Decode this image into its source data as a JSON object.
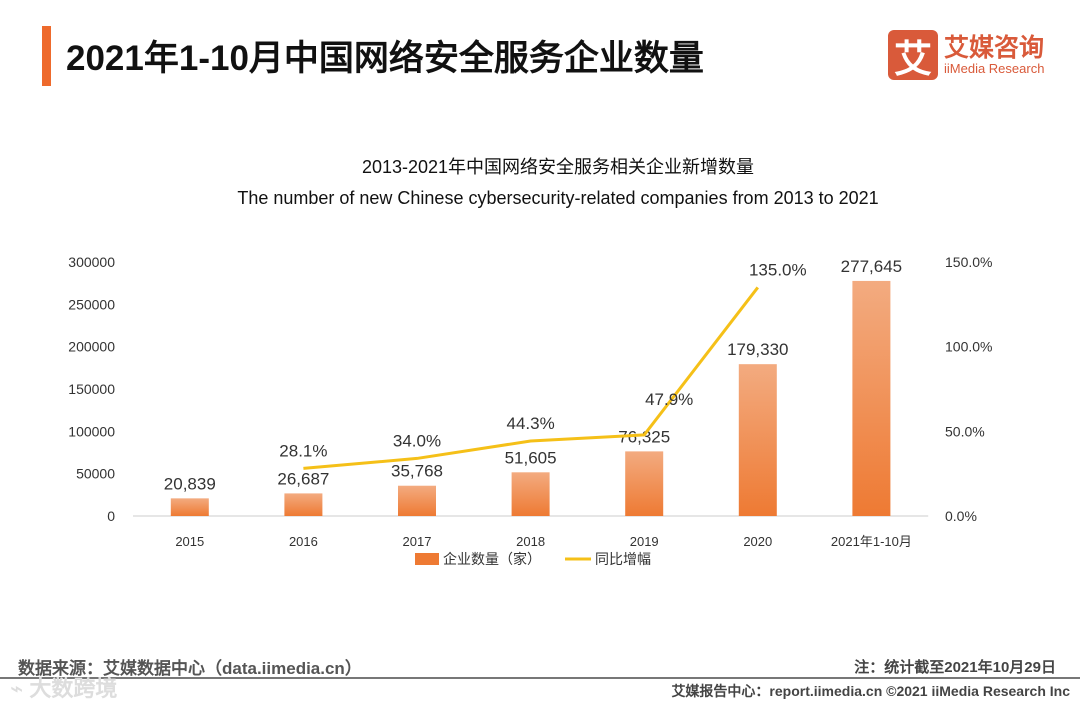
{
  "header": {
    "title": "2021年1-10月中国网络安全服务企业数量"
  },
  "logo": {
    "icon": "艾",
    "cn": "艾媒咨询",
    "en": "iiMedia Research"
  },
  "chart_data": {
    "type": "bar",
    "title": "2013-2021年中国网络安全服务相关企业新增数量",
    "subtitle": "The number of new Chinese cybersecurity-related companies from 2013 to 2021",
    "categories": [
      "2015",
      "2016",
      "2017",
      "2018",
      "2019",
      "2020",
      "2021年1-10月"
    ],
    "series": [
      {
        "name": "企业数量（家）",
        "type": "bar",
        "axis": "left",
        "values": [
          20839,
          26687,
          35768,
          51605,
          76325,
          179330,
          277645
        ],
        "labels": [
          "20,839",
          "26,687",
          "35,768",
          "51,605",
          "76,325",
          "179,330",
          "277,645"
        ],
        "color": "#ee7a33"
      },
      {
        "name": "同比增幅",
        "type": "line",
        "axis": "right",
        "values": [
          null,
          28.1,
          34.0,
          44.3,
          47.9,
          135.0,
          null
        ],
        "labels": [
          "",
          "28.1%",
          "34.0%",
          "44.3%",
          "47.9%",
          "135.0%",
          ""
        ],
        "color": "#f5c018"
      }
    ],
    "ylim": [
      0,
      300000
    ],
    "y2lim": [
      0,
      150
    ],
    "yticks": [
      "0",
      "50000",
      "100000",
      "150000",
      "200000",
      "250000",
      "300000"
    ],
    "y2ticks": [
      "0.0%",
      "50.0%",
      "100.0%",
      "150.0%"
    ],
    "legend": "bottom"
  },
  "footer": {
    "source": "数据来源：艾媒数据中心（data.iimedia.cn）",
    "note": "注：统计截至2021年10月29日",
    "bottom": "艾媒报告中心：report.iimedia.cn   ©2021  iiMedia Research  Inc",
    "watermark": "大数跨境"
  }
}
